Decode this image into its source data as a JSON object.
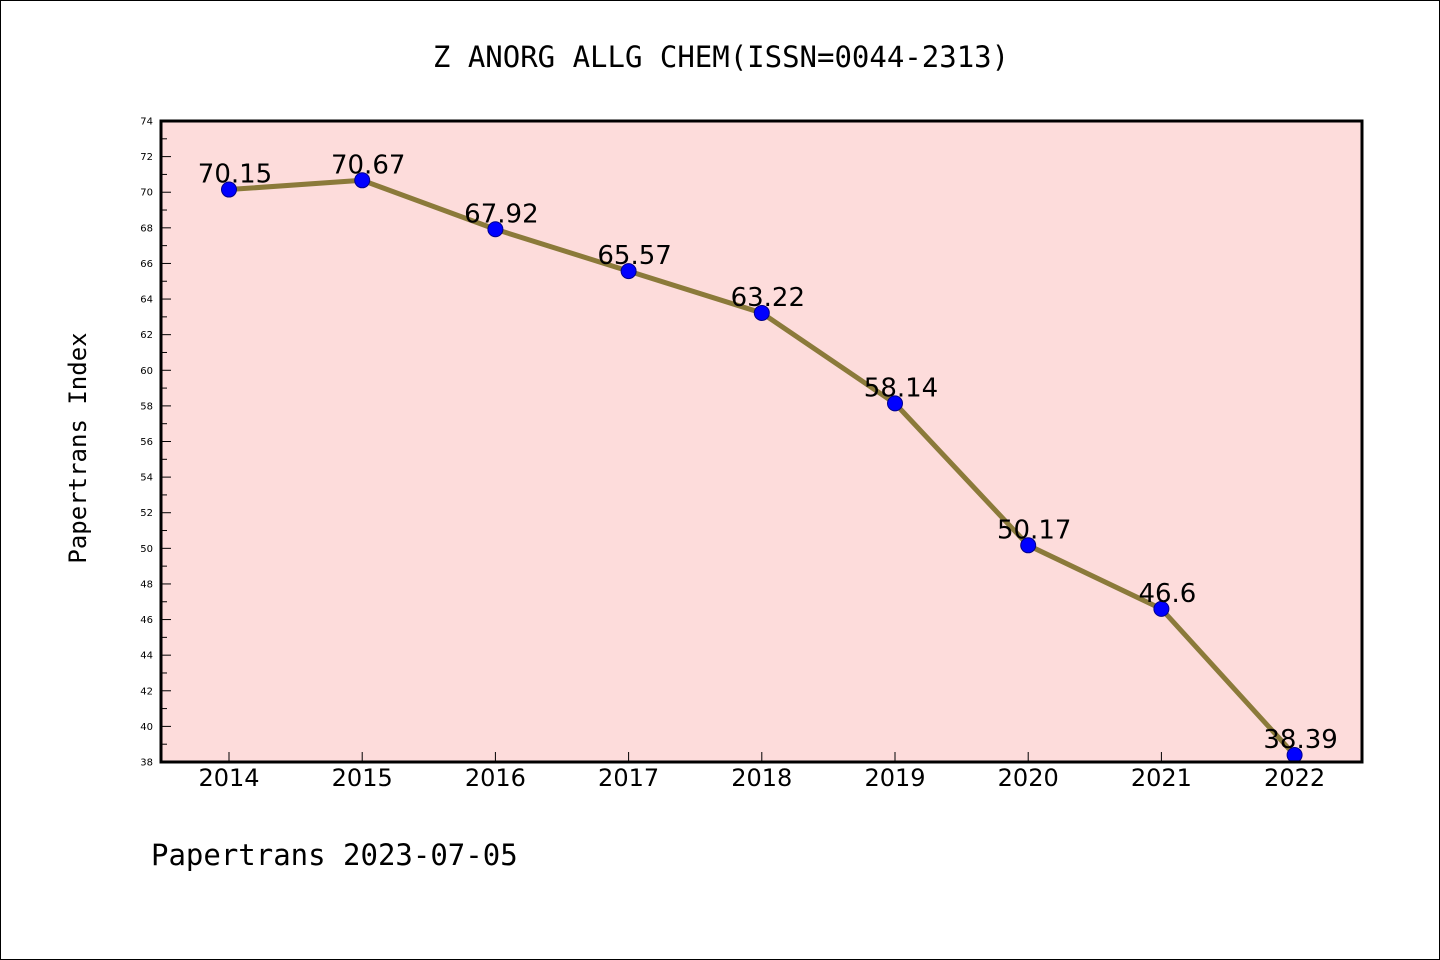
{
  "chart_data": {
    "type": "line",
    "title": "Z ANORG ALLG CHEM(ISSN=0044-2313)",
    "xlabel": "",
    "ylabel": "Papertrans Index",
    "categories": [
      "2014",
      "2015",
      "2016",
      "2017",
      "2018",
      "2019",
      "2020",
      "2021",
      "2022"
    ],
    "values": [
      70.15,
      70.67,
      67.92,
      65.57,
      63.22,
      58.14,
      50.17,
      46.6,
      38.39
    ],
    "data_labels": [
      "70.15",
      "70.67",
      "67.92",
      "65.57",
      "63.22",
      "58.14",
      "50.17",
      "46.6",
      "38.39"
    ],
    "ylim": [
      38,
      74
    ],
    "y_ticks": [
      38,
      40,
      42,
      44,
      46,
      48,
      50,
      52,
      54,
      56,
      58,
      60,
      62,
      64,
      66,
      68,
      70,
      72,
      74
    ],
    "grid": false,
    "legend": "none",
    "colors": {
      "plot_background": "#fddcdb",
      "line": "#8b7a3a",
      "marker": "#0000ff",
      "marker_edge": "#00008b"
    }
  },
  "footer": {
    "text": "Papertrans 2023-07-05"
  }
}
